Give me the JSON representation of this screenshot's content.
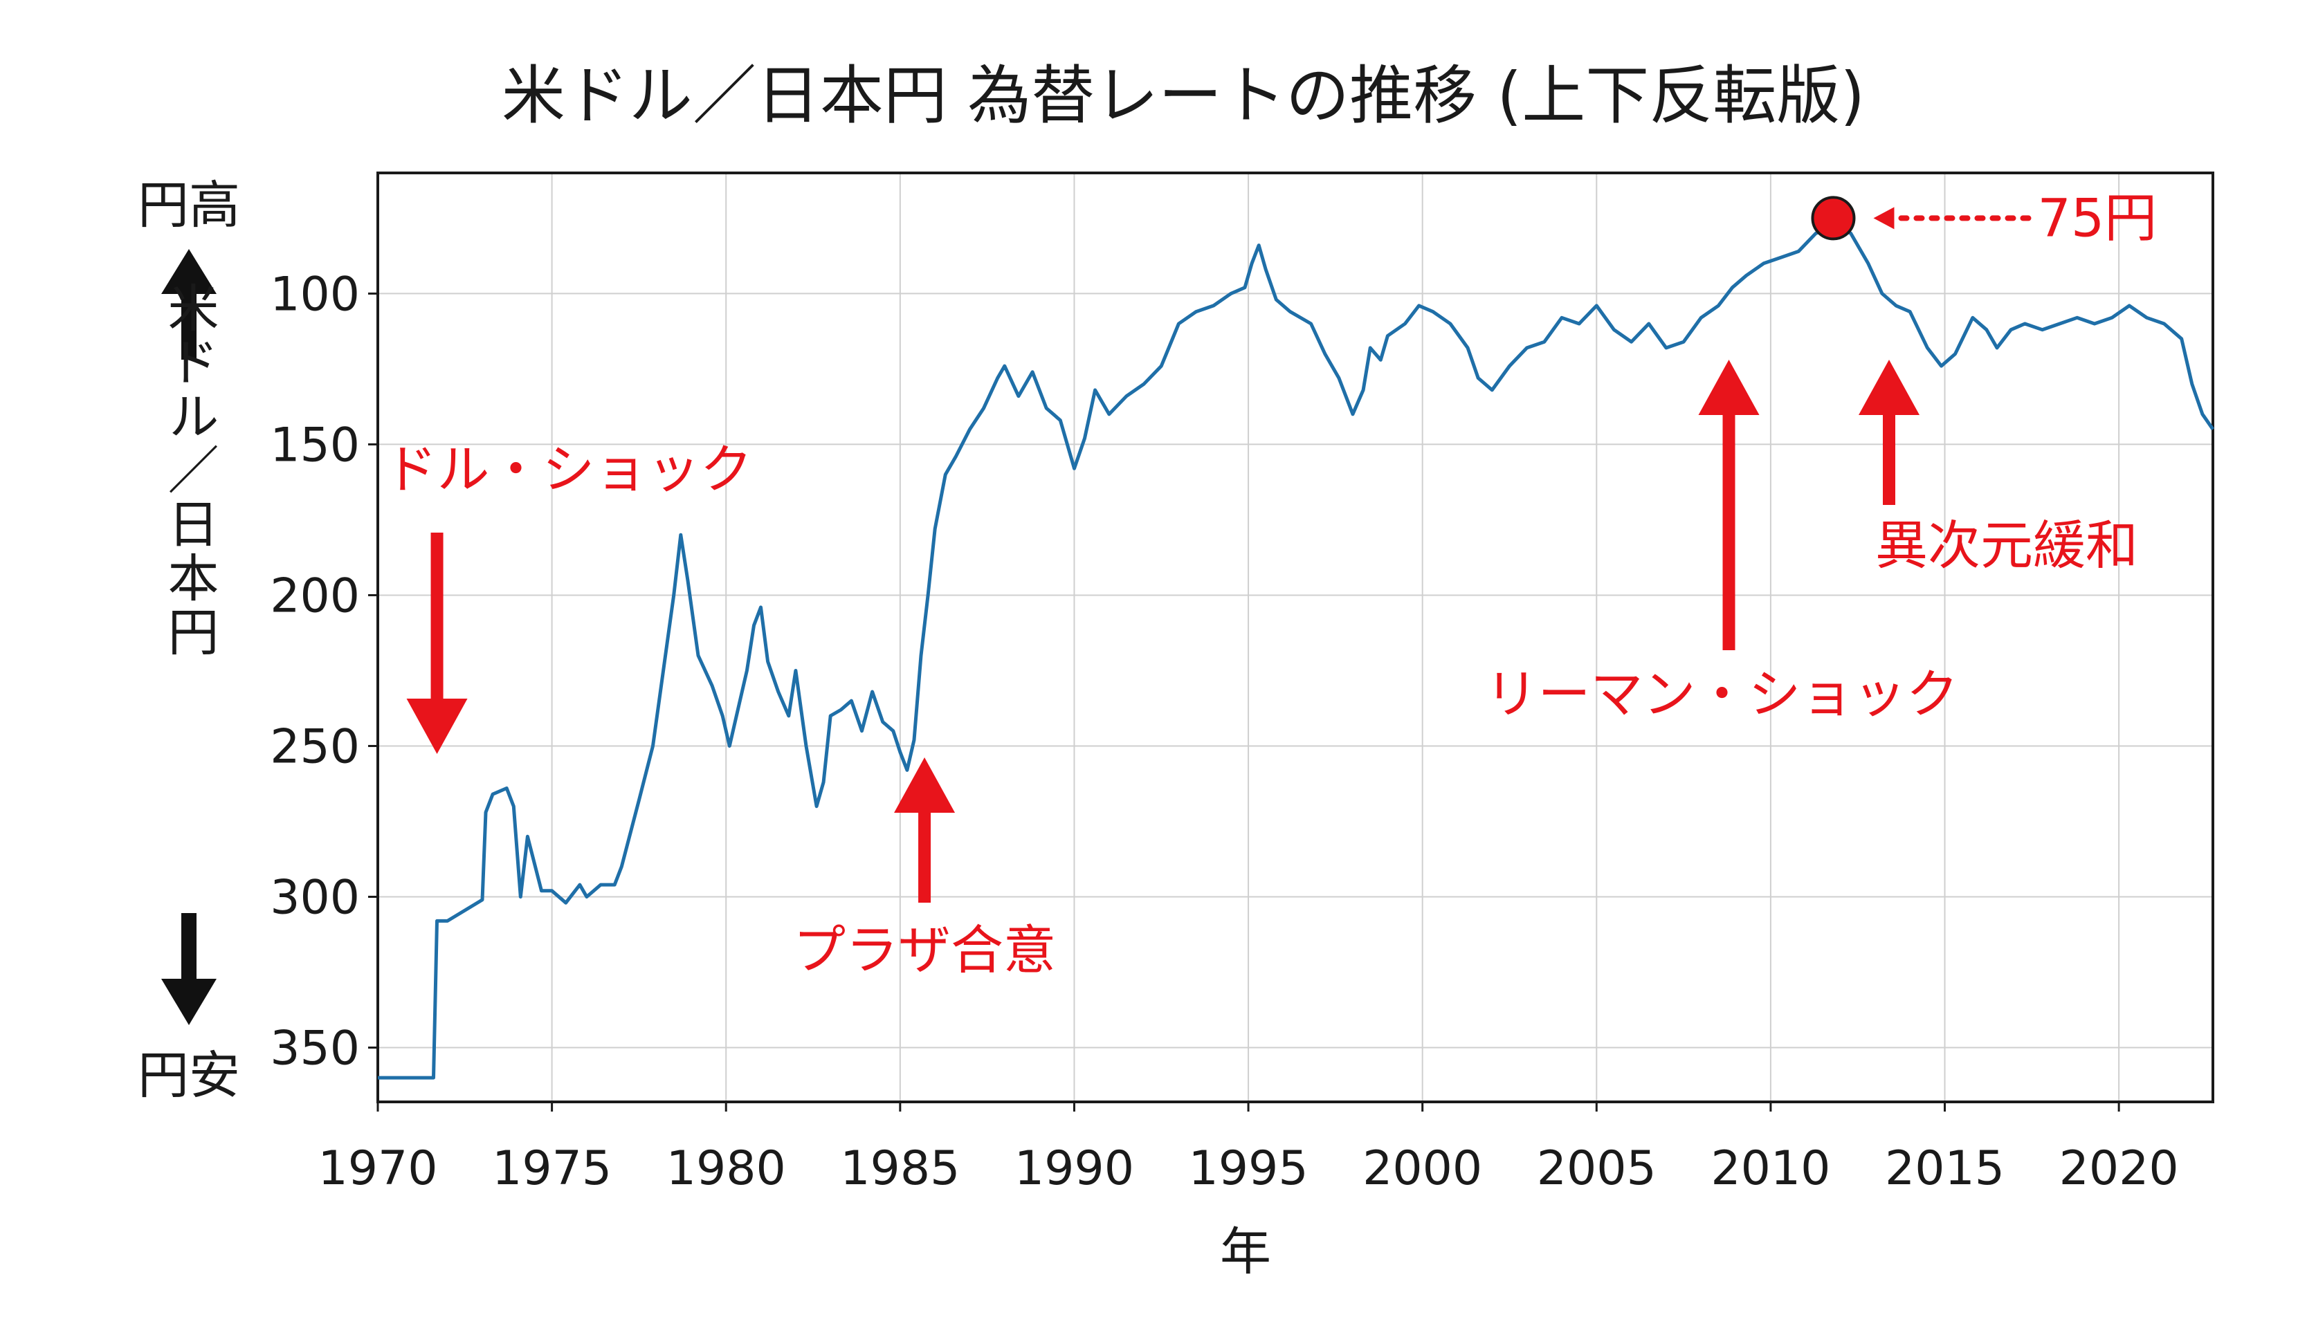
{
  "chart_data": {
    "type": "line",
    "title": "米ドル／日本円 為替レートの推移 (上下反転版)",
    "xlabel": "年",
    "ylabel": "米ドル／日本円",
    "y_top_label": "円高",
    "y_bottom_label": "円安",
    "xlim": [
      1970,
      2022.7
    ],
    "ylim": [
      368,
      60
    ],
    "y_inverted": true,
    "grid": true,
    "x_ticks": [
      "1970",
      "1975",
      "1980",
      "1985",
      "1990",
      "1995",
      "2000",
      "2005",
      "2010",
      "2015",
      "2020"
    ],
    "y_ticks": [
      "100",
      "150",
      "200",
      "250",
      "300",
      "350"
    ],
    "line_color": "#1f6fa8",
    "accent_color": "#e8141b",
    "series": [
      {
        "x": [
          1970.0,
          1971.6,
          1971.7,
          1972.0,
          1973.0,
          1973.1,
          1973.3,
          1973.7,
          1973.9,
          1974.1,
          1974.3,
          1974.7,
          1975.0,
          1975.4,
          1975.8,
          1976.0,
          1976.4,
          1976.8,
          1977.0,
          1977.5,
          1977.9,
          1978.2,
          1978.5,
          1978.7,
          1978.9,
          1979.2,
          1979.6,
          1979.9,
          1980.1,
          1980.3,
          1980.6,
          1980.8,
          1981.0,
          1981.2,
          1981.5,
          1981.8,
          1982.0,
          1982.3,
          1982.6,
          1982.8,
          1983.0,
          1983.3,
          1983.6,
          1983.9,
          1984.2,
          1984.5,
          1984.8,
          1985.0,
          1985.2,
          1985.4,
          1985.6,
          1985.8,
          1986.0,
          1986.3,
          1986.6,
          1987.0,
          1987.4,
          1987.8,
          1988.0,
          1988.4,
          1988.8,
          1989.2,
          1989.6,
          1990.0,
          1990.3,
          1990.6,
          1991.0,
          1991.5,
          1992.0,
          1992.5,
          1993.0,
          1993.5,
          1994.0,
          1994.5,
          1994.9,
          1995.1,
          1995.3,
          1995.5,
          1995.8,
          1996.2,
          1996.8,
          1997.2,
          1997.6,
          1998.0,
          1998.3,
          1998.5,
          1998.8,
          1999.0,
          1999.5,
          1999.9,
          2000.3,
          2000.8,
          2001.3,
          2001.6,
          2002.0,
          2002.5,
          2003.0,
          2003.5,
          2004.0,
          2004.5,
          2005.0,
          2005.5,
          2006.0,
          2006.5,
          2007.0,
          2007.5,
          2008.0,
          2008.5,
          2008.9,
          2009.3,
          2009.8,
          2010.3,
          2010.8,
          2011.3,
          2011.8,
          2012.3,
          2012.8,
          2013.2,
          2013.6,
          2014.0,
          2014.5,
          2014.9,
          2015.3,
          2015.8,
          2016.2,
          2016.5,
          2016.9,
          2017.3,
          2017.8,
          2018.3,
          2018.8,
          2019.3,
          2019.8,
          2020.3,
          2020.8,
          2021.3,
          2021.8,
          2022.1,
          2022.4,
          2022.7
        ],
        "values": [
          360,
          360,
          308,
          308,
          301,
          272,
          266,
          264,
          270,
          300,
          280,
          298,
          298,
          302,
          296,
          300,
          296,
          296,
          290,
          268,
          250,
          225,
          200,
          180,
          195,
          220,
          230,
          240,
          250,
          240,
          225,
          210,
          204,
          222,
          232,
          240,
          225,
          250,
          270,
          262,
          240,
          238,
          235,
          245,
          232,
          242,
          245,
          252,
          258,
          248,
          220,
          200,
          178,
          160,
          154,
          145,
          138,
          128,
          124,
          134,
          126,
          138,
          142,
          158,
          148,
          132,
          140,
          134,
          130,
          124,
          110,
          106,
          104,
          100,
          98,
          90,
          84,
          92,
          102,
          106,
          110,
          120,
          128,
          140,
          132,
          118,
          122,
          114,
          110,
          104,
          106,
          110,
          118,
          128,
          132,
          124,
          118,
          116,
          108,
          110,
          104,
          112,
          116,
          110,
          118,
          116,
          108,
          104,
          98,
          94,
          90,
          88,
          86,
          80,
          78,
          80,
          90,
          100,
          104,
          106,
          118,
          124,
          120,
          108,
          112,
          118,
          112,
          110,
          112,
          110,
          108,
          110,
          108,
          104,
          108,
          110,
          115,
          130,
          140,
          145
        ]
      }
    ],
    "marker": {
      "x": 2011.8,
      "y": 75,
      "label": "75円"
    },
    "annotations": [
      {
        "text": "ドル・ショック",
        "x": 1971.7,
        "direction": "down"
      },
      {
        "text": "プラザ合意",
        "x": 1985.7,
        "direction": "up"
      },
      {
        "text": "リーマン・ショック",
        "x": 2008.8,
        "direction": "up"
      },
      {
        "text": "異次元緩和",
        "x": 2013.4,
        "direction": "up"
      }
    ]
  }
}
